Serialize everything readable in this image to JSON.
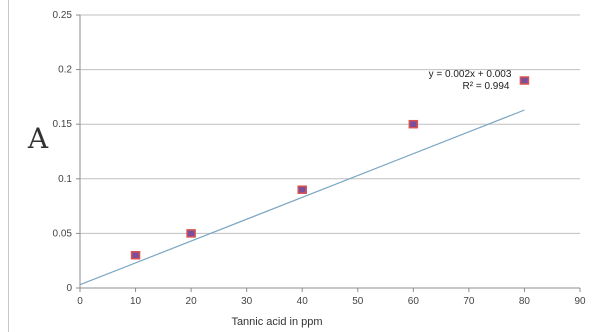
{
  "chart_data": {
    "type": "scatter",
    "title": "",
    "xlabel": "Tannic acid in ppm",
    "ylabel": "A",
    "xlim": [
      0,
      90
    ],
    "ylim": [
      0,
      0.25
    ],
    "x_ticks": [
      "0",
      "10",
      "20",
      "30",
      "40",
      "50",
      "60",
      "70",
      "80",
      "90"
    ],
    "y_ticks": [
      "0",
      "0.05",
      "0.1",
      "0.15",
      "0.2",
      "0.25"
    ],
    "grid": "horizontal",
    "series": [
      {
        "x": [
          10,
          20,
          40,
          60,
          80
        ],
        "y": [
          0.03,
          0.05,
          0.09,
          0.15,
          0.19
        ],
        "marker_color": "#7a4f9e",
        "marker_edge_color": "#d9534f"
      }
    ],
    "trendline": {
      "slope": 0.002,
      "intercept": 0.003,
      "x_range": [
        0,
        80
      ],
      "color": "#7aa6c2",
      "equation": "y = 0.002x + 0.003",
      "r_squared": "R² = 0.994"
    }
  }
}
